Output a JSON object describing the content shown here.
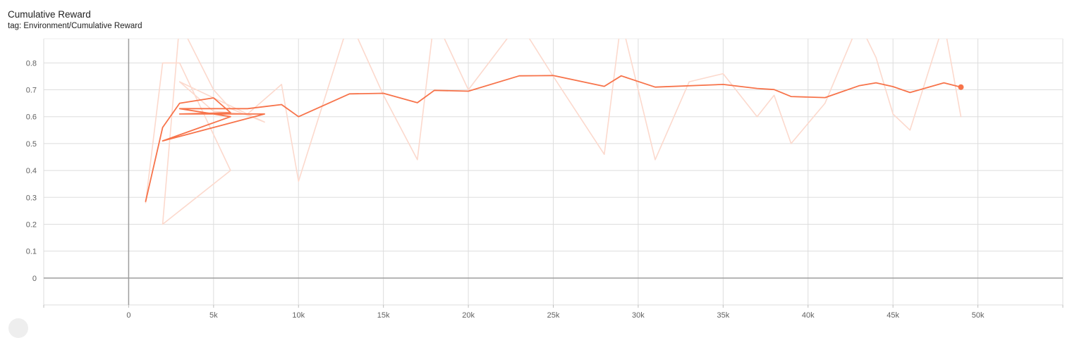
{
  "header": {
    "title": "Cumulative Reward",
    "tag": "tag: Environment/Cumulative Reward"
  },
  "colors": {
    "smoothed": "#f7734a",
    "raw": "#fcd9cd",
    "grid": "#dddddd",
    "zero_axis": "#9e9e9e"
  },
  "chart_data": {
    "type": "line",
    "title": "Cumulative Reward",
    "xlabel": "",
    "ylabel": "",
    "xlim": [
      -5000,
      55000
    ],
    "ylim": [
      -0.1,
      0.89
    ],
    "x_ticks": [
      0,
      5000,
      10000,
      15000,
      20000,
      25000,
      30000,
      35000,
      40000,
      45000,
      50000
    ],
    "x_tick_labels": [
      "0",
      "5k",
      "10k",
      "15k",
      "20k",
      "25k",
      "30k",
      "35k",
      "40k",
      "45k",
      "50k"
    ],
    "y_ticks": [
      0,
      0.1,
      0.2,
      0.3,
      0.4,
      0.5,
      0.6,
      0.7,
      0.8
    ],
    "y_tick_labels": [
      "0",
      "0.1",
      "0.2",
      "0.3",
      "0.4",
      "0.5",
      "0.6",
      "0.7",
      "0.8"
    ],
    "grid": true,
    "series": [
      {
        "style": "raw",
        "x": [
          1000,
          2000,
          3000,
          6000,
          2000,
          3000,
          5000,
          6000,
          8000,
          3000,
          5000,
          7000,
          9000,
          10000,
          13000,
          15000,
          17000,
          18000,
          20000,
          23000,
          25000,
          28000,
          29000,
          31000,
          33000,
          35000,
          37000,
          38000,
          39000,
          41000,
          43000,
          44000,
          45000,
          46000,
          48000,
          49000
        ],
        "y": [
          0.28,
          0.8,
          0.8,
          0.4,
          0.2,
          0.95,
          0.7,
          0.63,
          0.58,
          0.73,
          0.62,
          0.61,
          0.72,
          0.36,
          0.96,
          0.68,
          0.44,
          0.97,
          0.7,
          0.95,
          0.75,
          0.46,
          0.96,
          0.44,
          0.73,
          0.76,
          0.6,
          0.68,
          0.5,
          0.65,
          0.95,
          0.82,
          0.61,
          0.55,
          0.95,
          0.6
        ]
      },
      {
        "style": "smoothed",
        "x": [
          1000,
          2000,
          3000,
          5000,
          6000,
          3000,
          8000,
          2000,
          6000,
          3000,
          7000,
          9000,
          10000,
          13000,
          15000,
          17000,
          18000,
          20000,
          23000,
          25000,
          28000,
          29000,
          31000,
          35000,
          37000,
          38000,
          39000,
          41000,
          43000,
          44000,
          45000,
          46000,
          48000,
          49000
        ],
        "y": [
          0.285,
          0.56,
          0.65,
          0.67,
          0.615,
          0.61,
          0.61,
          0.51,
          0.6,
          0.63,
          0.63,
          0.645,
          0.6,
          0.685,
          0.687,
          0.652,
          0.698,
          0.695,
          0.752,
          0.753,
          0.713,
          0.752,
          0.71,
          0.72,
          0.705,
          0.701,
          0.675,
          0.671,
          0.715,
          0.726,
          0.712,
          0.69,
          0.726,
          0.71
        ]
      }
    ]
  }
}
